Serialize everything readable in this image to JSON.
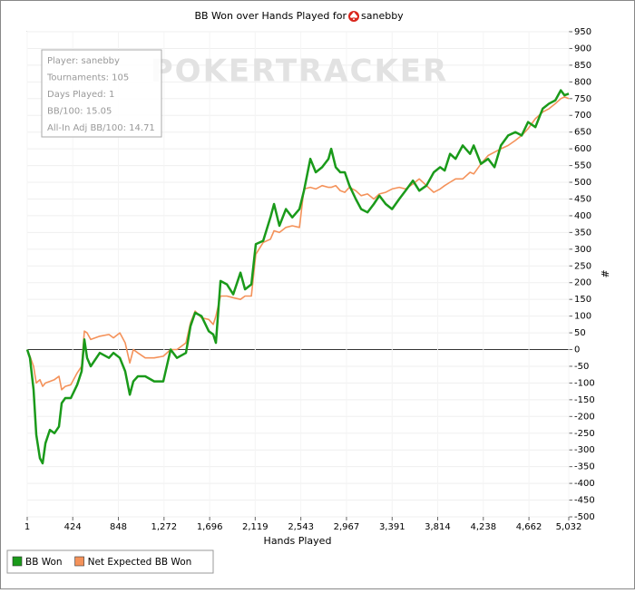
{
  "chart_data": {
    "type": "line",
    "title": "BB Won over Hands Played for",
    "title_player": "sanebby",
    "xlabel": "Hands Played",
    "ylabel": "#",
    "watermark": "POKERTRACKER",
    "info": [
      "Player: sanebby",
      "Tournaments: 105",
      "Days Played: 1",
      "BB/100: 15.05",
      "All-In Adj BB/100: 14.71"
    ],
    "grid": true,
    "legend": "bottom-left",
    "xlim": [
      1,
      5032
    ],
    "xticks": [
      1,
      424,
      848,
      {
        "value": 1272,
        "label": "1,272"
      },
      {
        "value": 1696,
        "label": "1,696"
      },
      {
        "value": 2119,
        "label": "2,119"
      },
      {
        "value": 2543,
        "label": "2,543"
      },
      {
        "value": 2967,
        "label": "2,967"
      },
      {
        "value": 3391,
        "label": "3,391"
      },
      {
        "value": 3814,
        "label": "3,814"
      },
      {
        "value": 4238,
        "label": "4,238"
      },
      {
        "value": 4662,
        "label": "4,662"
      },
      {
        "value": 5032,
        "label": "5,032"
      }
    ],
    "ylim": [
      -500,
      950
    ],
    "yticks": [
      -500,
      -450,
      -400,
      -350,
      -300,
      -250,
      -200,
      -150,
      -100,
      -50,
      0,
      50,
      100,
      150,
      200,
      250,
      300,
      350,
      400,
      450,
      500,
      550,
      600,
      650,
      700,
      750,
      800,
      850,
      900,
      950
    ],
    "x": [
      1,
      26,
      60,
      85,
      119,
      144,
      170,
      212,
      254,
      296,
      321,
      355,
      406,
      465,
      507,
      532,
      557,
      591,
      675,
      760,
      802,
      861,
      911,
      954,
      987,
      1029,
      1097,
      1181,
      1265,
      1333,
      1392,
      1476,
      1518,
      1561,
      1620,
      1687,
      1729,
      1754,
      1797,
      1856,
      1915,
      1982,
      2024,
      2083,
      2125,
      2193,
      2260,
      2294,
      2344,
      2404,
      2463,
      2530,
      2572,
      2631,
      2682,
      2741,
      2800,
      2825,
      2867,
      2909,
      2951,
      2994,
      3053,
      3103,
      3162,
      3221,
      3272,
      3331,
      3390,
      3457,
      3516,
      3584,
      3643,
      3710,
      3778,
      3837,
      3879,
      3929,
      3980,
      4047,
      4115,
      4149,
      4216,
      4283,
      4342,
      4402,
      4469,
      4536,
      4595,
      4654,
      4722,
      4789,
      4848,
      4907,
      4958,
      4992,
      5032
    ],
    "series": [
      {
        "name": "BB Won",
        "color": "#1a9a1a",
        "values": [
          0,
          -25,
          -120,
          -255,
          -325,
          -340,
          -280,
          -240,
          -250,
          -230,
          -160,
          -145,
          -145,
          -105,
          -65,
          30,
          -25,
          -50,
          -10,
          -25,
          -10,
          -25,
          -65,
          -135,
          -95,
          -80,
          -80,
          -95,
          -95,
          0,
          -25,
          -10,
          70,
          110,
          100,
          55,
          45,
          20,
          205,
          195,
          165,
          230,
          180,
          195,
          315,
          325,
          395,
          435,
          370,
          420,
          395,
          420,
          475,
          570,
          530,
          545,
          570,
          600,
          545,
          530,
          530,
          490,
          450,
          420,
          410,
          435,
          460,
          435,
          420,
          450,
          475,
          505,
          475,
          490,
          530,
          545,
          535,
          585,
          570,
          610,
          585,
          610,
          555,
          570,
          545,
          610,
          640,
          650,
          640,
          680,
          665,
          720,
          735,
          745,
          775,
          760,
          765
        ]
      },
      {
        "name": "Net Expected BB Won",
        "color": "#f4925a",
        "values": [
          0,
          -20,
          -50,
          -100,
          -90,
          -110,
          -100,
          -95,
          -90,
          -80,
          -120,
          -110,
          -105,
          -70,
          -50,
          55,
          50,
          30,
          40,
          45,
          35,
          50,
          20,
          -40,
          0,
          -10,
          -25,
          -25,
          -20,
          0,
          0,
          20,
          80,
          115,
          95,
          90,
          75,
          100,
          160,
          160,
          155,
          150,
          160,
          160,
          285,
          320,
          330,
          355,
          350,
          365,
          370,
          365,
          480,
          485,
          480,
          490,
          485,
          485,
          490,
          475,
          470,
          485,
          475,
          460,
          465,
          450,
          465,
          470,
          480,
          485,
          480,
          495,
          510,
          490,
          470,
          480,
          490,
          500,
          510,
          510,
          530,
          525,
          555,
          580,
          590,
          600,
          610,
          625,
          640,
          660,
          690,
          710,
          720,
          735,
          750,
          755,
          750
        ]
      }
    ]
  }
}
